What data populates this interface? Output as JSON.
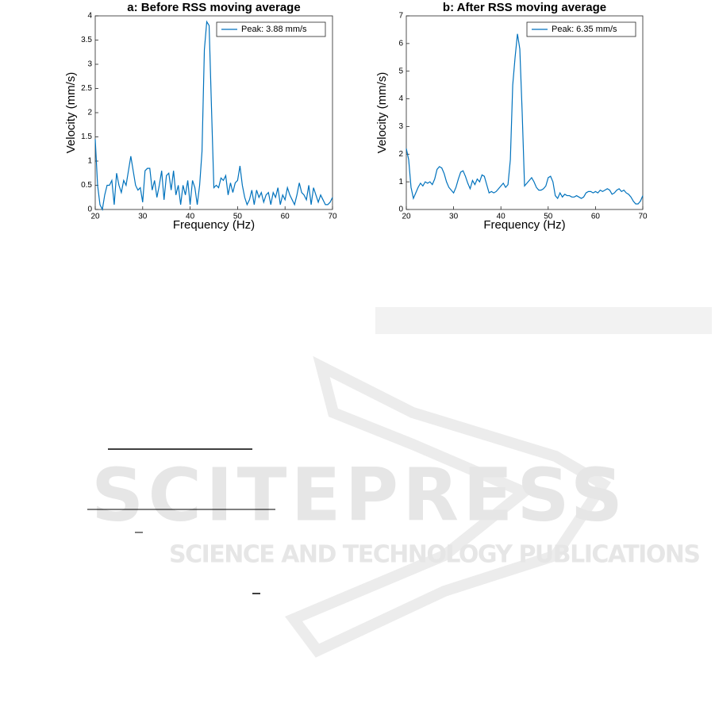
{
  "chart_data": [
    {
      "type": "line",
      "title": "a: Before RSS moving average",
      "xlabel": "Frequency (Hz)",
      "ylabel": "Velocity (mm/s)",
      "x": [
        20,
        20.5,
        21,
        21.5,
        22,
        22.5,
        23,
        23.5,
        24,
        24.5,
        25,
        25.5,
        26,
        26.5,
        27,
        27.5,
        28,
        28.5,
        29,
        29.5,
        30,
        30.5,
        31,
        31.5,
        32,
        32.5,
        33,
        33.5,
        34,
        34.5,
        35,
        35.5,
        36,
        36.5,
        37,
        37.5,
        38,
        38.5,
        39,
        39.5,
        40,
        40.5,
        41,
        41.5,
        42,
        42.5,
        43,
        43.5,
        44,
        44.5,
        45,
        45.5,
        46,
        46.5,
        47,
        47.5,
        48,
        48.5,
        49,
        49.5,
        50,
        50.5,
        51,
        51.5,
        52,
        52.5,
        53,
        53.5,
        54,
        54.5,
        55,
        55.5,
        56,
        56.5,
        57,
        57.5,
        58,
        58.5,
        59,
        59.5,
        60,
        60.5,
        61,
        61.5,
        62,
        62.5,
        63,
        63.5,
        64,
        64.5,
        65,
        65.5,
        66,
        66.5,
        67,
        67.5,
        68,
        68.5,
        69,
        69.5,
        70
      ],
      "series": [
        {
          "name": "Peak: 3.88 mm/s",
          "color": "#0072bd",
          "values": [
            1.45,
            0.5,
            0.1,
            0,
            0.3,
            0.5,
            0.5,
            0.6,
            0.1,
            0.75,
            0.5,
            0.35,
            0.6,
            0.5,
            0.8,
            1.1,
            0.8,
            0.5,
            0.4,
            0.45,
            0.15,
            0.8,
            0.85,
            0.85,
            0.4,
            0.6,
            0.25,
            0.5,
            0.8,
            0.2,
            0.7,
            0.75,
            0.4,
            0.8,
            0.3,
            0.5,
            0.1,
            0.5,
            0.3,
            0.6,
            0.1,
            0.6,
            0.45,
            0.1,
            0.5,
            1.2,
            3.3,
            3.88,
            3.8,
            2.1,
            0.45,
            0.5,
            0.45,
            0.65,
            0.6,
            0.7,
            0.3,
            0.55,
            0.35,
            0.55,
            0.6,
            0.9,
            0.5,
            0.25,
            0.1,
            0.2,
            0.4,
            0.1,
            0.4,
            0.25,
            0.35,
            0.15,
            0.3,
            0.35,
            0.1,
            0.35,
            0.25,
            0.45,
            0.1,
            0.3,
            0.2,
            0.45,
            0.3,
            0.2,
            0.1,
            0.3,
            0.55,
            0.35,
            0.3,
            0.2,
            0.5,
            0.1,
            0.45,
            0.3,
            0.15,
            0.3,
            0.2,
            0.1,
            0.1,
            0.15,
            0.25
          ]
        }
      ],
      "xlim": [
        20,
        70
      ],
      "xticks": [
        20,
        30,
        40,
        50,
        60,
        70
      ],
      "ylim": [
        0,
        4
      ],
      "yticks": [
        0,
        0.5,
        1,
        1.5,
        2,
        2.5,
        3,
        3.5,
        4
      ],
      "legend": "upper right"
    },
    {
      "type": "line",
      "title": "b: After RSS moving average",
      "xlabel": "Frequency (Hz)",
      "ylabel": "Velocity (mm/s)",
      "x": [
        20,
        20.5,
        21,
        21.5,
        22,
        22.5,
        23,
        23.5,
        24,
        24.5,
        25,
        25.5,
        26,
        26.5,
        27,
        27.5,
        28,
        28.5,
        29,
        29.5,
        30,
        30.5,
        31,
        31.5,
        32,
        32.5,
        33,
        33.5,
        34,
        34.5,
        35,
        35.5,
        36,
        36.5,
        37,
        37.5,
        38,
        38.5,
        39,
        39.5,
        40,
        40.5,
        41,
        41.5,
        42,
        42.5,
        43,
        43.5,
        44,
        44.5,
        45,
        45.5,
        46,
        46.5,
        47,
        47.5,
        48,
        48.5,
        49,
        49.5,
        50,
        50.5,
        51,
        51.5,
        52,
        52.5,
        53,
        53.5,
        54,
        54.5,
        55,
        55.5,
        56,
        56.5,
        57,
        57.5,
        58,
        58.5,
        59,
        59.5,
        60,
        60.5,
        61,
        61.5,
        62,
        62.5,
        63,
        63.5,
        64,
        64.5,
        65,
        65.5,
        66,
        66.5,
        67,
        67.5,
        68,
        68.5,
        69,
        69.5,
        70
      ],
      "series": [
        {
          "name": "Peak: 6.35 mm/s",
          "color": "#0072bd",
          "values": [
            2.2,
            1.8,
            0.8,
            0.4,
            0.6,
            0.8,
            0.95,
            0.85,
            1.0,
            0.95,
            1.0,
            0.9,
            1.1,
            1.45,
            1.55,
            1.5,
            1.3,
            1.0,
            0.8,
            0.7,
            0.6,
            0.8,
            1.1,
            1.35,
            1.4,
            1.2,
            0.95,
            0.75,
            1.05,
            0.9,
            1.1,
            1.0,
            1.25,
            1.2,
            0.9,
            0.6,
            0.65,
            0.6,
            0.65,
            0.75,
            0.85,
            0.95,
            0.8,
            0.9,
            1.8,
            4.5,
            5.5,
            6.35,
            5.8,
            3.5,
            0.85,
            0.95,
            1.05,
            1.15,
            1.0,
            0.8,
            0.7,
            0.7,
            0.75,
            0.85,
            1.15,
            1.2,
            1.0,
            0.5,
            0.4,
            0.6,
            0.45,
            0.55,
            0.5,
            0.5,
            0.45,
            0.45,
            0.5,
            0.45,
            0.4,
            0.45,
            0.6,
            0.65,
            0.65,
            0.6,
            0.65,
            0.6,
            0.7,
            0.65,
            0.7,
            0.75,
            0.7,
            0.55,
            0.6,
            0.7,
            0.75,
            0.65,
            0.7,
            0.6,
            0.55,
            0.45,
            0.3,
            0.2,
            0.2,
            0.3,
            0.5
          ]
        }
      ],
      "xlim": [
        20,
        70
      ],
      "xticks": [
        20,
        30,
        40,
        50,
        60,
        70
      ],
      "ylim": [
        0,
        7
      ],
      "yticks": [
        0,
        1,
        2,
        3,
        4,
        5,
        6,
        7
      ],
      "legend": "upper right"
    }
  ],
  "watermark": {
    "name": "SCITEPRESS",
    "tagline": "SCIENCE AND TECHNOLOGY PUBLICATIONS"
  }
}
